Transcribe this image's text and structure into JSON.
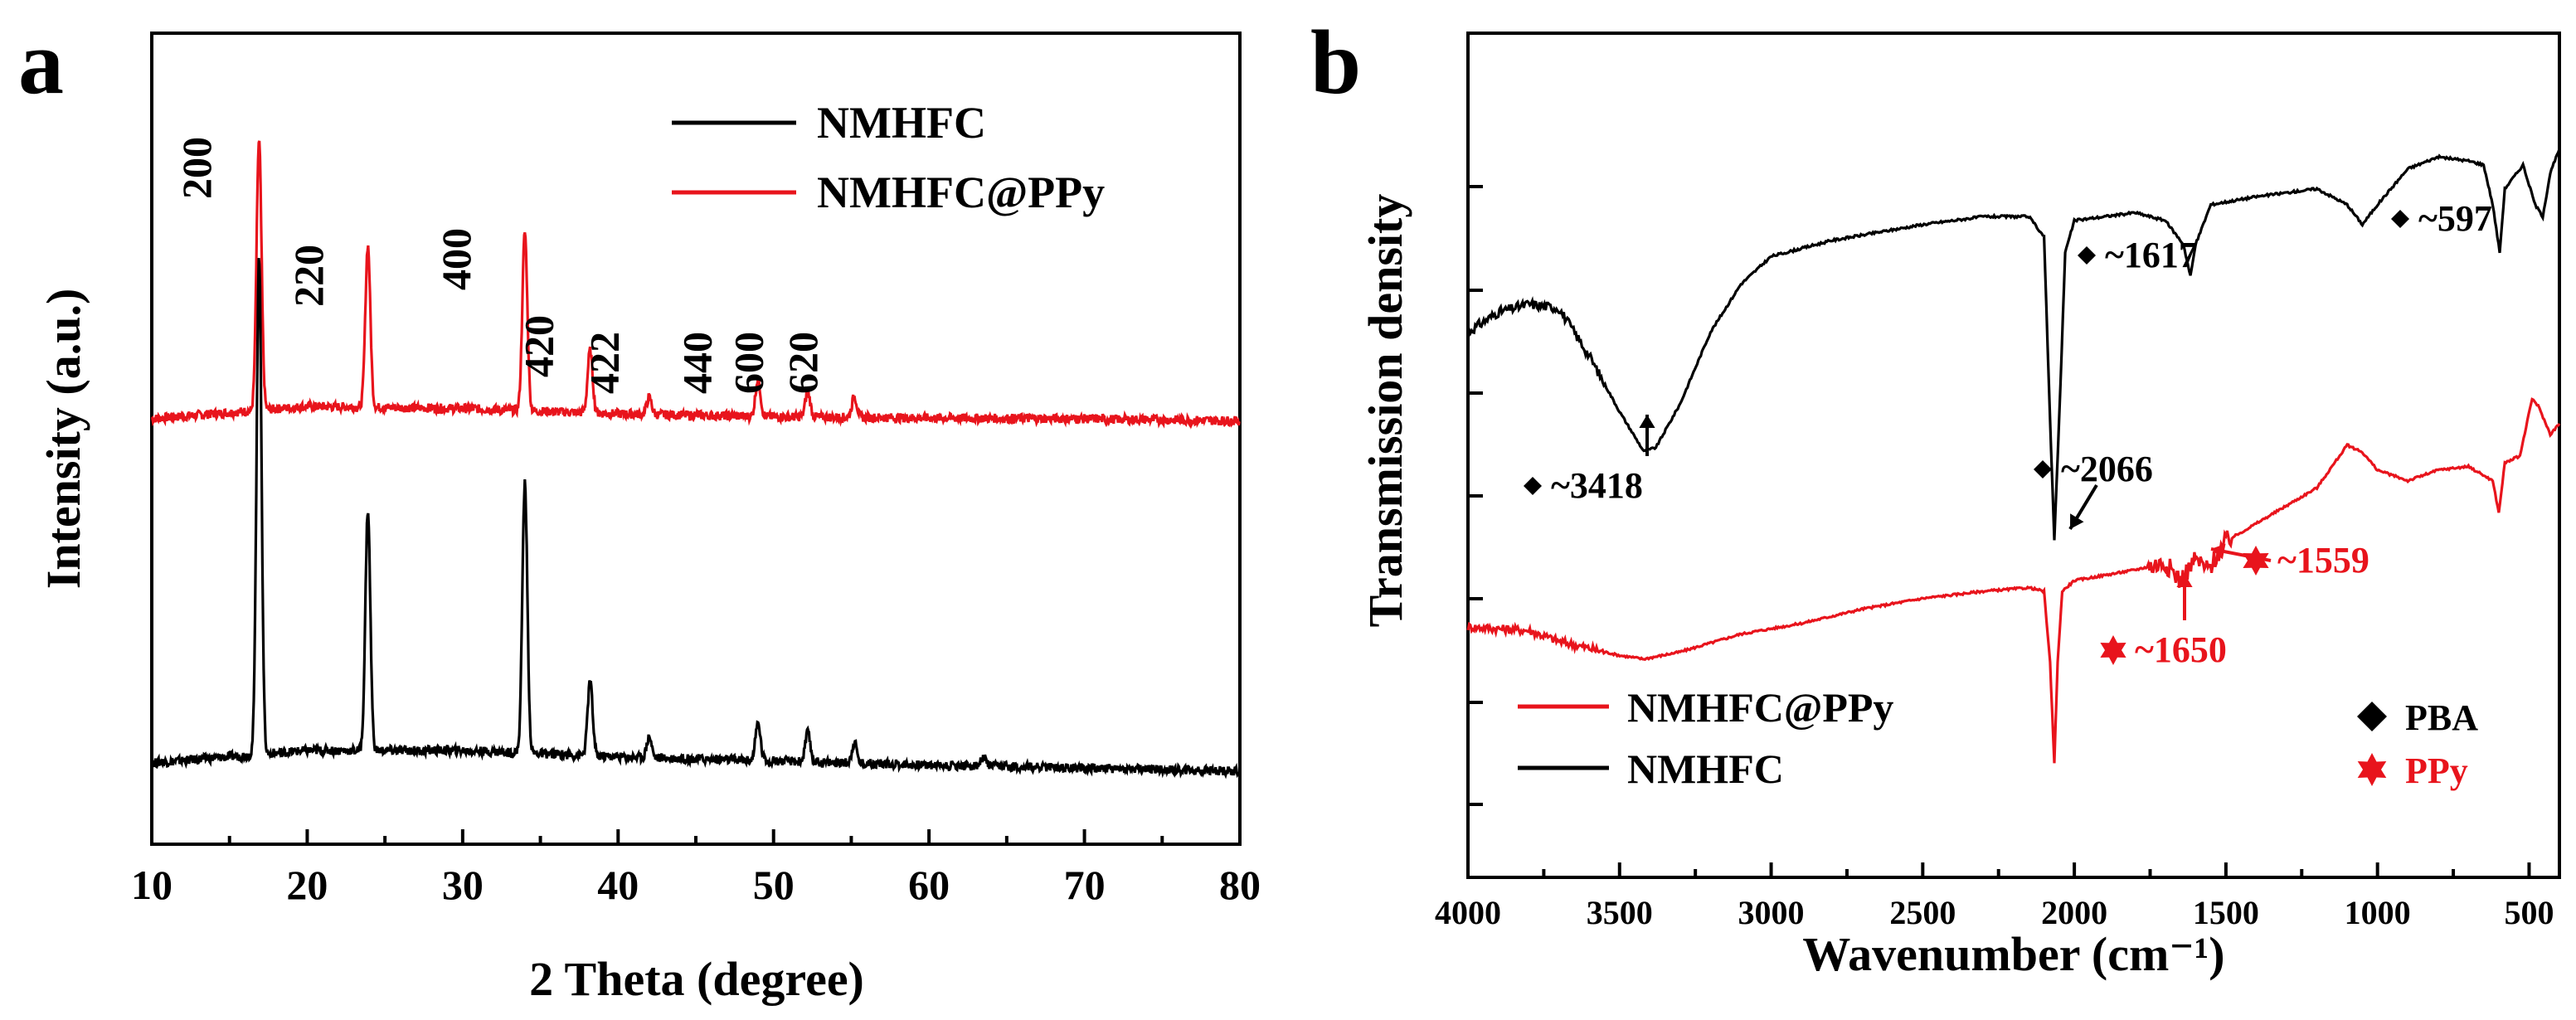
{
  "chart_data": [
    {
      "type": "line",
      "panel_label": "a",
      "xlabel": "2 Theta (degree)",
      "ylabel": "Intensity (a.u.)",
      "xlim": [
        10,
        80
      ],
      "xticks": [
        "10",
        "20",
        "30",
        "40",
        "50",
        "60",
        "70",
        "80"
      ],
      "legend": {
        "placement": "top-right",
        "entries": [
          "NMHFC",
          "NMHFC@PPy"
        ]
      },
      "colors": {
        "NMHFC": "#000000",
        "NMHFC@PPy": "#e8141c"
      },
      "peak_labels": [
        {
          "text": "200",
          "x": 13.8
        },
        {
          "text": "220",
          "x": 21.0
        },
        {
          "text": "400",
          "x": 30.5
        },
        {
          "text": "420",
          "x": 35.8
        },
        {
          "text": "422",
          "x": 40.0
        },
        {
          "text": "440",
          "x": 46.0
        },
        {
          "text": "600",
          "x": 49.3
        },
        {
          "text": "620",
          "x": 52.8
        }
      ],
      "series": [
        {
          "name": "NMHFC@PPy",
          "color": "#e8141c",
          "baseline": [
            [
              10,
              0.0
            ],
            [
              20,
              0.3
            ],
            [
              30,
              0.25
            ],
            [
              40,
              0.12
            ],
            [
              50,
              0.05
            ],
            [
              60,
              0.02
            ],
            [
              70,
              0.0
            ],
            [
              80,
              -0.05
            ]
          ],
          "peaks": [
            [
              16.9,
              6.5
            ],
            [
              23.9,
              3.9
            ],
            [
              34.0,
              4.3
            ],
            [
              38.2,
              1.5
            ],
            [
              42.0,
              0.4
            ],
            [
              49.0,
              0.9
            ],
            [
              52.2,
              0.6
            ],
            [
              55.2,
              0.5
            ]
          ]
        },
        {
          "name": "NMHFC",
          "color": "#000000",
          "baseline": [
            [
              10,
              0.0
            ],
            [
              20,
              0.3
            ],
            [
              30,
              0.3
            ],
            [
              40,
              0.15
            ],
            [
              50,
              0.05
            ],
            [
              60,
              -0.05
            ],
            [
              70,
              -0.12
            ],
            [
              80,
              -0.2
            ]
          ],
          "peaks": [
            [
              16.9,
              12.0
            ],
            [
              23.9,
              5.8
            ],
            [
              34.0,
              6.5
            ],
            [
              38.2,
              1.8
            ],
            [
              42.0,
              0.5
            ],
            [
              49.0,
              0.9
            ],
            [
              52.2,
              0.7
            ],
            [
              55.2,
              0.5
            ],
            [
              63.5,
              0.2
            ]
          ]
        }
      ]
    },
    {
      "type": "line",
      "panel_label": "b",
      "xlabel": "Wavenumber (cm⁻¹)",
      "ylabel": "Transmission density",
      "xlim": [
        4000,
        400
      ],
      "xticks": [
        "4000",
        "3500",
        "3000",
        "2500",
        "2000",
        "1500",
        "1000",
        "500"
      ],
      "legend": {
        "placement": "bottom-left",
        "entries": [
          "NMHFC@PPy",
          "NMHFC"
        ]
      },
      "marker_legend": {
        "placement": "bottom-right",
        "entries": [
          {
            "symbol": "diamond",
            "label": "PBA",
            "color": "#000000"
          },
          {
            "symbol": "star",
            "label": "PPy",
            "color": "#e8141c"
          }
        ]
      },
      "colors": {
        "NMHFC": "#000000",
        "NMHFC@PPy": "#e8141c"
      },
      "annotations": [
        {
          "text": "~3418",
          "x": 3418,
          "marker": "diamond",
          "color": "#000000",
          "series": "NMHFC"
        },
        {
          "text": "~2066",
          "x": 2066,
          "marker": "diamond",
          "color": "#000000",
          "series": "NMHFC"
        },
        {
          "text": "~1617",
          "x": 1617,
          "marker": "diamond",
          "color": "#000000",
          "series": "NMHFC"
        },
        {
          "text": "~597",
          "x": 597,
          "marker": "diamond",
          "color": "#000000",
          "series": "NMHFC"
        },
        {
          "text": "~1650",
          "x": 1650,
          "marker": "star",
          "color": "#e8141c",
          "series": "NMHFC@PPy"
        },
        {
          "text": "~1559",
          "x": 1559,
          "marker": "star",
          "color": "#e8141c",
          "series": "NMHFC@PPy"
        }
      ],
      "series": [
        {
          "name": "NMHFC",
          "color": "#000000",
          "points": [
            [
              4000,
              2.6
            ],
            [
              3900,
              2.85
            ],
            [
              3800,
              2.95
            ],
            [
              3700,
              2.9
            ],
            [
              3600,
              2.3
            ],
            [
              3500,
              1.6
            ],
            [
              3420,
              1.1
            ],
            [
              3380,
              1.15
            ],
            [
              3300,
              1.7
            ],
            [
              3200,
              2.6
            ],
            [
              3100,
              3.2
            ],
            [
              3000,
              3.55
            ],
            [
              2800,
              3.75
            ],
            [
              2500,
              3.95
            ],
            [
              2300,
              4.05
            ],
            [
              2150,
              4.05
            ],
            [
              2100,
              3.8
            ],
            [
              2080,
              1.5
            ],
            [
              2066,
              0.0
            ],
            [
              2050,
              1.5
            ],
            [
              2030,
              3.6
            ],
            [
              2000,
              4.0
            ],
            [
              1800,
              4.1
            ],
            [
              1700,
              4.0
            ],
            [
              1640,
              3.7
            ],
            [
              1617,
              3.3
            ],
            [
              1600,
              3.7
            ],
            [
              1550,
              4.2
            ],
            [
              1400,
              4.3
            ],
            [
              1200,
              4.4
            ],
            [
              1100,
              4.2
            ],
            [
              1050,
              3.95
            ],
            [
              1000,
              4.2
            ],
            [
              900,
              4.65
            ],
            [
              800,
              4.8
            ],
            [
              700,
              4.75
            ],
            [
              650,
              4.7
            ],
            [
              620,
              4.2
            ],
            [
              597,
              3.6
            ],
            [
              580,
              4.4
            ],
            [
              520,
              4.7
            ],
            [
              480,
              4.2
            ],
            [
              455,
              4.05
            ],
            [
              430,
              4.6
            ],
            [
              400,
              4.9
            ]
          ]
        },
        {
          "name": "NMHFC@PPy",
          "color": "#e8141c",
          "points": [
            [
              4000,
              -1.0
            ],
            [
              3800,
              -1.05
            ],
            [
              3700,
              -1.2
            ],
            [
              3600,
              -1.3
            ],
            [
              3500,
              -1.4
            ],
            [
              3420,
              -1.45
            ],
            [
              3300,
              -1.35
            ],
            [
              3100,
              -1.1
            ],
            [
              2900,
              -0.95
            ],
            [
              2700,
              -0.75
            ],
            [
              2500,
              -0.6
            ],
            [
              2300,
              -0.5
            ],
            [
              2150,
              -0.45
            ],
            [
              2100,
              -0.5
            ],
            [
              2080,
              -1.5
            ],
            [
              2066,
              -2.9
            ],
            [
              2055,
              -1.5
            ],
            [
              2040,
              -0.5
            ],
            [
              2000,
              -0.35
            ],
            [
              1800,
              -0.2
            ],
            [
              1700,
              -0.1
            ],
            [
              1650,
              -0.35
            ],
            [
              1600,
              -0.05
            ],
            [
              1559,
              -0.2
            ],
            [
              1500,
              0.2
            ],
            [
              1400,
              0.45
            ],
            [
              1300,
              0.7
            ],
            [
              1200,
              0.95
            ],
            [
              1100,
              1.55
            ],
            [
              1050,
              1.45
            ],
            [
              1000,
              1.2
            ],
            [
              900,
              1.05
            ],
            [
              800,
              1.2
            ],
            [
              700,
              1.25
            ],
            [
              620,
              1.05
            ],
            [
              600,
              0.6
            ],
            [
              580,
              1.3
            ],
            [
              530,
              1.4
            ],
            [
              490,
              2.2
            ],
            [
              470,
              2.1
            ],
            [
              430,
              1.7
            ],
            [
              400,
              1.85
            ]
          ]
        }
      ]
    }
  ]
}
